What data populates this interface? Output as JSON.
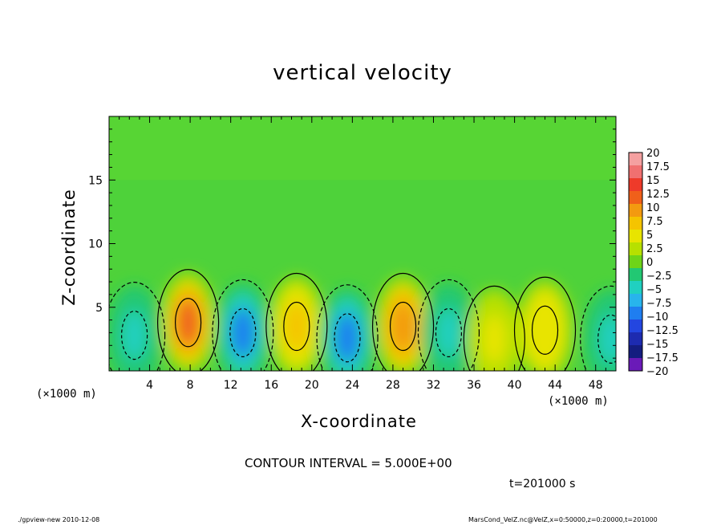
{
  "chart_data": {
    "type": "heatmap",
    "title": "vertical velocity",
    "xlabel": "X-coordinate",
    "ylabel": "Z-coordinate",
    "x_unit_label": "(×1000 m)",
    "xlim": [
      0,
      50
    ],
    "ylim": [
      0,
      20
    ],
    "x_ticks": [
      4,
      8,
      12,
      16,
      20,
      24,
      28,
      32,
      36,
      40,
      44,
      48
    ],
    "y_ticks": [
      5,
      10,
      15
    ],
    "colorbar": {
      "levels": [
        20,
        17.5,
        15,
        12.5,
        10,
        7.5,
        5,
        2.5,
        0,
        -2.5,
        -5,
        -7.5,
        -10,
        -12.5,
        -15,
        -17.5,
        -20
      ],
      "labels": [
        "20",
        "17.5",
        "15",
        "12.5",
        "10",
        "7.5",
        "5",
        "2.5",
        "0",
        "−2.5",
        "−5",
        "−7.5",
        "−10",
        "−12.5",
        "−15",
        "−17.5",
        "−20"
      ],
      "colors": [
        "#f4a0a0",
        "#f07070",
        "#ee3a2a",
        "#f0601a",
        "#f39a10",
        "#f5c400",
        "#e8e400",
        "#b7e000",
        "#6ed418",
        "#22c873",
        "#20d0c0",
        "#28b4ec",
        "#1f7ef0",
        "#2346e0",
        "#1d2bb0",
        "#141d80",
        "#6a1ab8"
      ]
    },
    "contour_interval_text": "CONTOUR INTERVAL = 5.000E+00",
    "features": [
      {
        "x": 2.5,
        "z": 2.8,
        "w": -6
      },
      {
        "x": 7.8,
        "z": 3.8,
        "w": 11
      },
      {
        "x": 13.2,
        "z": 3.0,
        "w": -12
      },
      {
        "x": 18.5,
        "z": 3.5,
        "w": 7
      },
      {
        "x": 23.5,
        "z": 2.6,
        "w": -11
      },
      {
        "x": 29.0,
        "z": 3.5,
        "w": 9
      },
      {
        "x": 33.5,
        "z": 3.0,
        "w": -7
      },
      {
        "x": 38.0,
        "z": 2.5,
        "w": 3
      },
      {
        "x": 43.0,
        "z": 3.2,
        "w": 5
      },
      {
        "x": 49.5,
        "z": 2.5,
        "w": -7
      }
    ]
  },
  "annotations": {
    "time": "t=201000 s",
    "footer_left": "./gpview-new  2010-12-08",
    "footer_right": "MarsCond_VelZ.nc@VelZ,x=0:50000,z=0:20000,t=201000"
  }
}
